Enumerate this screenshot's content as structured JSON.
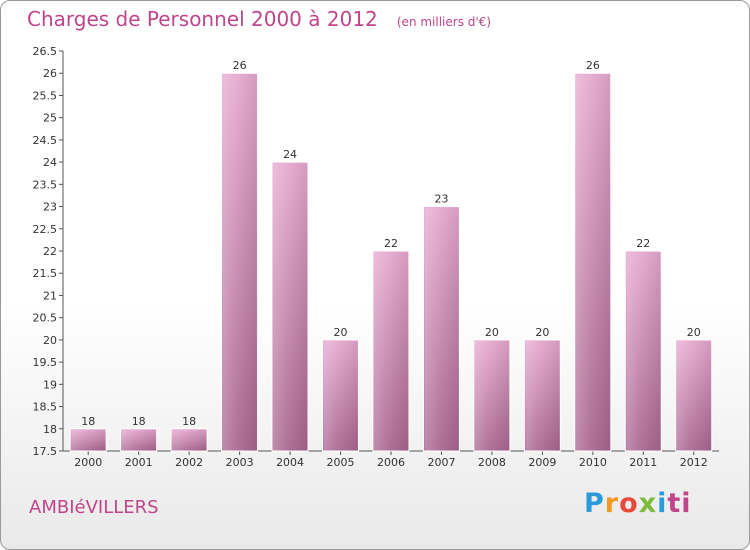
{
  "chart_data": {
    "type": "bar",
    "title": "Charges de Personnel 2000 à 2012",
    "subtitle": "(en milliers d'€)",
    "categories": [
      "2000",
      "2001",
      "2002",
      "2003",
      "2004",
      "2005",
      "2006",
      "2007",
      "2008",
      "2009",
      "2010",
      "2011",
      "2012"
    ],
    "values": [
      18,
      18,
      18,
      26,
      24,
      20,
      22,
      23,
      20,
      20,
      26,
      22,
      20
    ],
    "ylim": [
      17.5,
      26.5
    ],
    "yticks": [
      "17.5",
      "18",
      "18.5",
      "19",
      "19.5",
      "20",
      "20.5",
      "21",
      "21.5",
      "22",
      "22.5",
      "23",
      "23.5",
      "24",
      "24.5",
      "25",
      "25.5",
      "26",
      "26.5"
    ],
    "grid": false,
    "bar_color": "#c77fab"
  },
  "footer": {
    "town": "AMBIéVILLERS",
    "logo": [
      "P",
      "r",
      "o",
      "x",
      "i",
      "ti"
    ]
  }
}
